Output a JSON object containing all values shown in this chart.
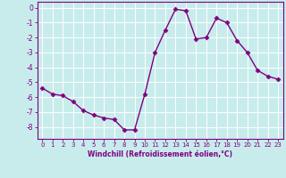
{
  "x": [
    0,
    1,
    2,
    3,
    4,
    5,
    6,
    7,
    8,
    9,
    10,
    11,
    12,
    13,
    14,
    15,
    16,
    17,
    18,
    19,
    20,
    21,
    22,
    23
  ],
  "y": [
    -5.4,
    -5.8,
    -5.9,
    -6.3,
    -6.9,
    -7.2,
    -7.4,
    -7.5,
    -8.2,
    -8.2,
    -5.8,
    -3.0,
    -1.5,
    -0.1,
    -0.2,
    -2.1,
    -2.0,
    -0.7,
    -1.0,
    -2.2,
    -3.0,
    -4.2,
    -4.6,
    -4.8
  ],
  "line_color": "#800080",
  "marker": "D",
  "markersize": 2.5,
  "linewidth": 1.0,
  "background_color": "#c8ecec",
  "grid_color": "#ffffff",
  "xlabel": "Windchill (Refroidissement éolien,°C)",
  "xlabel_color": "#800080",
  "tick_color": "#800080",
  "spine_color": "#800080",
  "ylim": [
    -8.8,
    0.4
  ],
  "xlim": [
    -0.5,
    23.5
  ],
  "yticks": [
    0,
    -1,
    -2,
    -3,
    -4,
    -5,
    -6,
    -7,
    -8
  ],
  "xticks": [
    0,
    1,
    2,
    3,
    4,
    5,
    6,
    7,
    8,
    9,
    10,
    11,
    12,
    13,
    14,
    15,
    16,
    17,
    18,
    19,
    20,
    21,
    22,
    23
  ],
  "tick_fontsize": 5,
  "xlabel_fontsize": 5.5,
  "xlabel_fontweight": "bold"
}
